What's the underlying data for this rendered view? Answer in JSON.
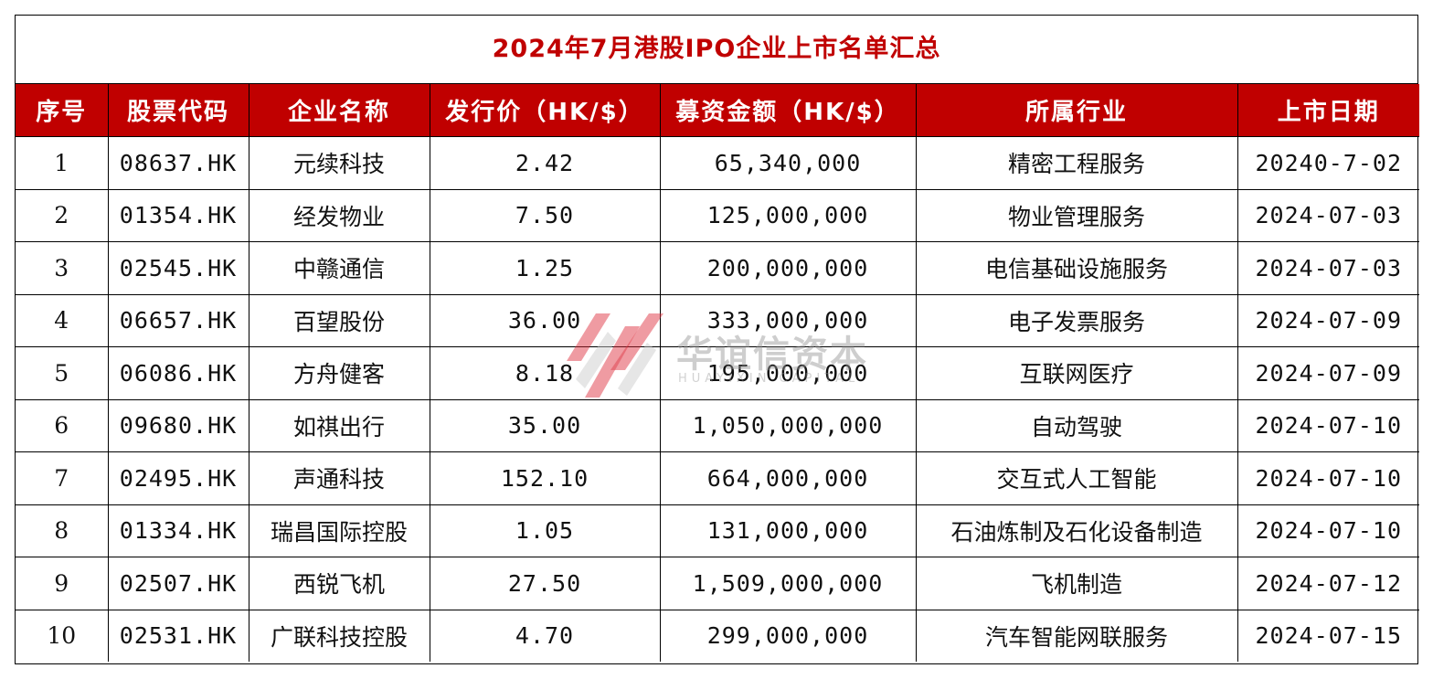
{
  "title": "2024年7月港股IPO企业上市名单汇总",
  "colors": {
    "header_bg": "#c00000",
    "title_text": "#c00000",
    "header_text": "#ffffff"
  },
  "headers": [
    "序号",
    "股票代码",
    "企业名称",
    "发行价（HK/$）",
    "募资金额（HK/$）",
    "所属行业",
    "上市日期"
  ],
  "rows": [
    [
      "1",
      "08637.HK",
      "元续科技",
      "2.42",
      "65,340,000",
      "精密工程服务",
      "20240-7-02"
    ],
    [
      "2",
      "01354.HK",
      "经发物业",
      "7.50",
      "125,000,000",
      "物业管理服务",
      "2024-07-03"
    ],
    [
      "3",
      "02545.HK",
      "中赣通信",
      "1.25",
      "200,000,000",
      "电信基础设施服务",
      "2024-07-03"
    ],
    [
      "4",
      "06657.HK",
      "百望股份",
      "36.00",
      "333,000,000",
      "电子发票服务",
      "2024-07-09"
    ],
    [
      "5",
      "06086.HK",
      "方舟健客",
      "8.18",
      "195,000,000",
      "互联网医疗",
      "2024-07-09"
    ],
    [
      "6",
      "09680.HK",
      "如祺出行",
      "35.00",
      "1,050,000,000",
      "自动驾驶",
      "2024-07-10"
    ],
    [
      "7",
      "02495.HK",
      "声通科技",
      "152.10",
      "664,000,000",
      "交互式人工智能",
      "2024-07-10"
    ],
    [
      "8",
      "01334.HK",
      "瑞昌国际控股",
      "1.05",
      "131,000,000",
      "石油炼制及石化设备制造",
      "2024-07-10"
    ],
    [
      "9",
      "02507.HK",
      "西锐飞机",
      "27.50",
      "1,509,000,000",
      "飞机制造",
      "2024-07-12"
    ],
    [
      "10",
      "02531.HK",
      "广联科技控股",
      "4.70",
      "299,000,000",
      "汽车智能网联服务",
      "2024-07-15"
    ]
  ],
  "watermark": {
    "name": "华谊信资本",
    "name_en": "HUAYIXIN CAPITAL",
    "icon": "huayixin-logo-icon"
  }
}
